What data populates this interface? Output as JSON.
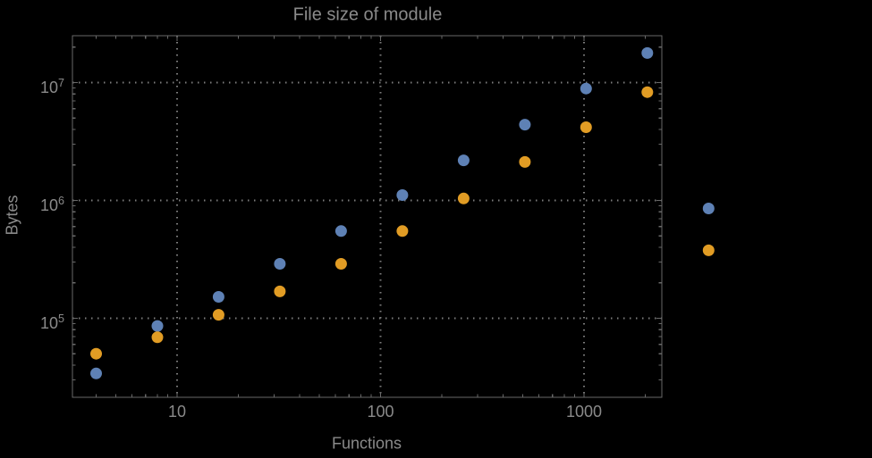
{
  "title": "File size of module",
  "colors": {
    "background": "#000000",
    "frame": "#696969",
    "grid": "#7d7d7d",
    "text": "#8a8a8a",
    "series_blue": "#5E81B5",
    "series_orange": "#E19C24"
  },
  "chart_data": {
    "type": "scatter",
    "title": "File size of module",
    "xlabel": "Functions",
    "ylabel": "Bytes",
    "x_scale": "log",
    "y_scale": "log",
    "grid": "dotted",
    "legend": "none",
    "xlim": [
      3.1,
      2420
    ],
    "ylim": [
      21000,
      25000000
    ],
    "x_major_ticks": [
      10,
      100,
      1000
    ],
    "y_major_ticks": [
      100000,
      1000000,
      10000000
    ],
    "x": [
      4,
      8,
      16,
      32,
      64,
      128,
      256,
      512,
      1024,
      2048,
      4096
    ],
    "series": [
      {
        "name": "blue",
        "color": "#5E81B5",
        "values": [
          34000,
          86000,
          152000,
          290000,
          550000,
          1110000,
          2190000,
          4400000,
          8900000,
          17800000,
          855000
        ]
      },
      {
        "name": "orange",
        "color": "#E19C24",
        "values": [
          50000,
          69000,
          107000,
          169000,
          290000,
          550000,
          1040000,
          2120000,
          4180000,
          8300000,
          377000
        ]
      }
    ]
  }
}
